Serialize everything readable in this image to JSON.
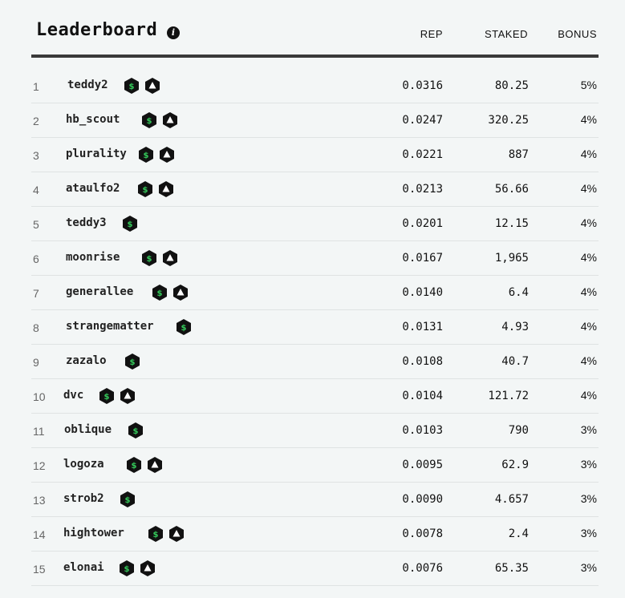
{
  "header": {
    "title": "Leaderboard",
    "columns": {
      "rep": "REP",
      "staked": "STAKED",
      "bonus": "BONUS"
    }
  },
  "colors": {
    "badge_bg": "#111111",
    "dollar": "#34c759",
    "row_border": "#dfe3e3"
  },
  "icons": {
    "info": "info-icon",
    "dollar_badge": "dollar-badge-icon",
    "triangle_badge": "triangle-badge-icon"
  },
  "rows": [
    {
      "rank": "1",
      "user": "teddy2",
      "rep": "0.0316",
      "staked": "80.25",
      "bonus": "5%",
      "badges": [
        "dollar",
        "triangle"
      ]
    },
    {
      "rank": "2",
      "user": "hb_scout",
      "rep": "0.0247",
      "staked": "320.25",
      "bonus": "4%",
      "badges": [
        "dollar",
        "triangle"
      ]
    },
    {
      "rank": "3",
      "user": "plurality",
      "rep": "0.0221",
      "staked": "887",
      "bonus": "4%",
      "badges": [
        "dollar",
        "triangle"
      ]
    },
    {
      "rank": "4",
      "user": "ataulfo2",
      "rep": "0.0213",
      "staked": "56.66",
      "bonus": "4%",
      "badges": [
        "dollar",
        "triangle"
      ]
    },
    {
      "rank": "5",
      "user": "teddy3",
      "rep": "0.0201",
      "staked": "12.15",
      "bonus": "4%",
      "badges": [
        "dollar"
      ]
    },
    {
      "rank": "6",
      "user": "moonrise",
      "rep": "0.0167",
      "staked": "1,965",
      "bonus": "4%",
      "badges": [
        "dollar",
        "triangle"
      ]
    },
    {
      "rank": "7",
      "user": "generallee",
      "rep": "0.0140",
      "staked": "6.4",
      "bonus": "4%",
      "badges": [
        "dollar",
        "triangle"
      ]
    },
    {
      "rank": "8",
      "user": "strangematter",
      "rep": "0.0131",
      "staked": "4.93",
      "bonus": "4%",
      "badges": [
        "dollar"
      ]
    },
    {
      "rank": "9",
      "user": "zazalo",
      "rep": "0.0108",
      "staked": "40.7",
      "bonus": "4%",
      "badges": [
        "dollar"
      ]
    },
    {
      "rank": "10",
      "user": "dvc",
      "rep": "0.0104",
      "staked": "121.72",
      "bonus": "4%",
      "badges": [
        "dollar",
        "triangle"
      ]
    },
    {
      "rank": "11",
      "user": "oblique",
      "rep": "0.0103",
      "staked": "790",
      "bonus": "3%",
      "badges": [
        "dollar"
      ]
    },
    {
      "rank": "12",
      "user": "logoza",
      "rep": "0.0095",
      "staked": "62.9",
      "bonus": "3%",
      "badges": [
        "dollar",
        "triangle"
      ]
    },
    {
      "rank": "13",
      "user": "strob2",
      "rep": "0.0090",
      "staked": "4.657",
      "bonus": "3%",
      "badges": [
        "dollar"
      ]
    },
    {
      "rank": "14",
      "user": "hightower",
      "rep": "0.0078",
      "staked": "2.4",
      "bonus": "3%",
      "badges": [
        "dollar",
        "triangle"
      ]
    },
    {
      "rank": "15",
      "user": "elonai",
      "rep": "0.0076",
      "staked": "65.35",
      "bonus": "3%",
      "badges": [
        "dollar",
        "triangle"
      ]
    }
  ]
}
